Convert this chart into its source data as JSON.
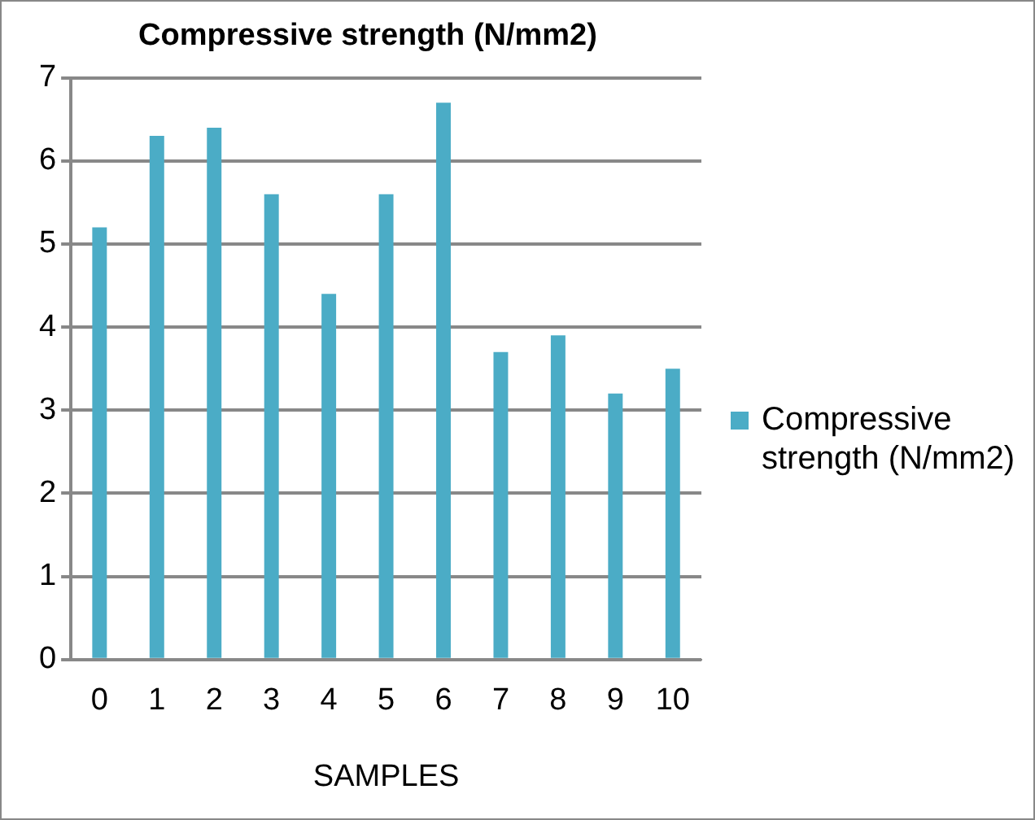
{
  "chart_data": {
    "type": "bar",
    "title": "Compressive strength (N/mm2)",
    "xlabel": "SAMPLES",
    "categories": [
      "0",
      "1",
      "2",
      "3",
      "4",
      "5",
      "6",
      "7",
      "8",
      "9",
      "10"
    ],
    "series": [
      {
        "name": "Compressive strength (N/mm2)",
        "color": "#4bacc6",
        "values": [
          5.2,
          6.3,
          6.4,
          5.6,
          4.4,
          5.6,
          6.7,
          3.7,
          3.9,
          3.2,
          3.5
        ]
      }
    ],
    "ylim": [
      0,
      7
    ],
    "yticks": [
      0,
      1,
      2,
      3,
      4,
      5,
      6,
      7
    ],
    "grid": "y",
    "legend": "right"
  }
}
